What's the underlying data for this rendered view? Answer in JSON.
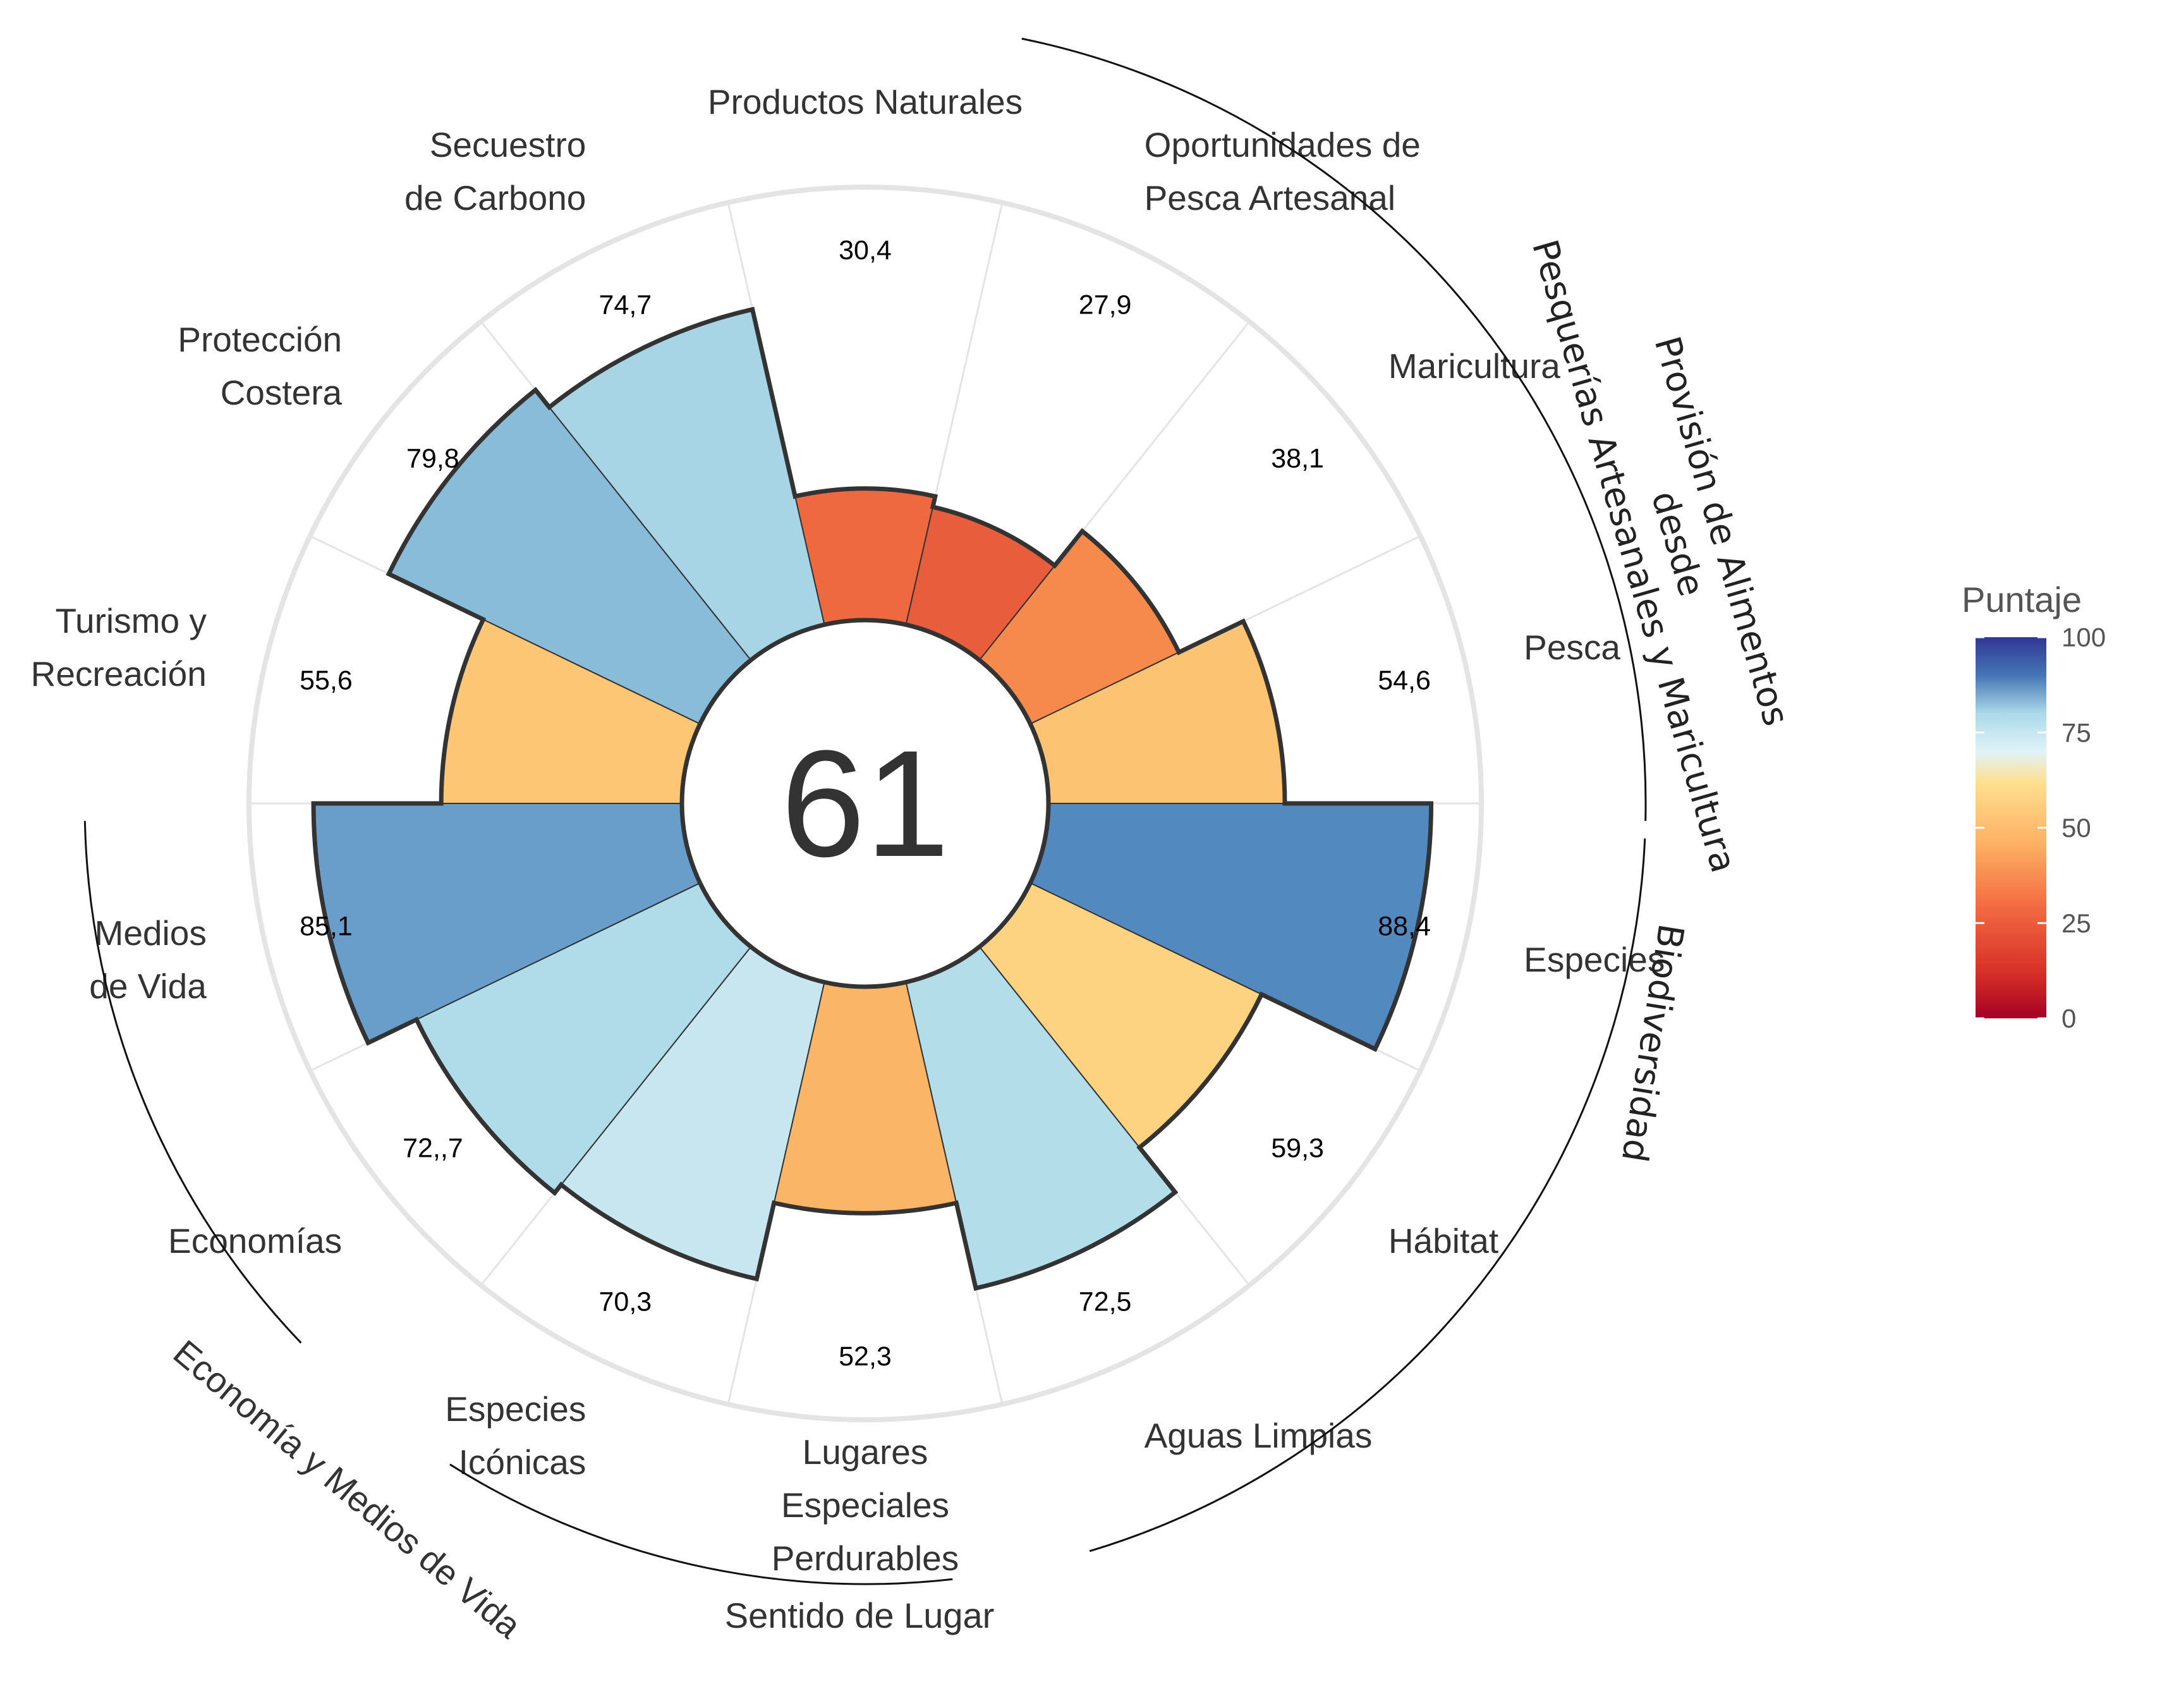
{
  "chart_data": {
    "type": "polar-bar",
    "center_score": "61",
    "legend": {
      "title": "Puntaje",
      "ticks": [
        "0",
        "25",
        "50",
        "75",
        "100"
      ]
    },
    "categories": [
      {
        "label": [
          "Productos Naturales"
        ],
        "value": 30.4,
        "value_label": "30,4",
        "color": "#ee6840"
      },
      {
        "label": [
          "Oportunidades de",
          "Pesca Artesanal"
        ],
        "value": 27.9,
        "value_label": "27,9",
        "color": "#e85d3b"
      },
      {
        "label": [
          "Maricultura"
        ],
        "value": 38.1,
        "value_label": "38,1",
        "color": "#f58a4c"
      },
      {
        "label": [
          "Pesca"
        ],
        "value": 54.6,
        "value_label": "54,6",
        "color": "#fcc472"
      },
      {
        "label": [
          "Especies"
        ],
        "value": 88.4,
        "value_label": "88,4",
        "color": "#5289be"
      },
      {
        "label": [
          "Hábitat"
        ],
        "value": 59.3,
        "value_label": "59,3",
        "color": "#fdd280"
      },
      {
        "label": [
          "Aguas Limpias"
        ],
        "value": 72.5,
        "value_label": "72,5",
        "color": "#b3dde9"
      },
      {
        "label": [
          "Lugares",
          "Especiales",
          "Perdurables"
        ],
        "value": 52.3,
        "value_label": "52,3",
        "color": "#fab566"
      },
      {
        "label": [
          "Especies",
          "Icónicas"
        ],
        "value": 70.3,
        "value_label": "70,3",
        "color": "#c8e6ef"
      },
      {
        "label": [
          "Economías"
        ],
        "value": 72.7,
        "value_label": "72,,7",
        "color": "#b0dbe9"
      },
      {
        "label": [
          "Medios",
          "de Vida"
        ],
        "value": 85.1,
        "value_label": "85,1",
        "color": "#699ecb"
      },
      {
        "label": [
          "Turismo y",
          "Recreación"
        ],
        "value": 55.6,
        "value_label": "55,6",
        "color": "#fcc675"
      },
      {
        "label": [
          "Protección",
          "Costera"
        ],
        "value": 79.8,
        "value_label": "79,8",
        "color": "#88bcd8"
      },
      {
        "label": [
          "Secuestro",
          "de Carbono"
        ],
        "value": 74.7,
        "value_label": "74,7",
        "color": "#a8d5e6"
      }
    ],
    "groups": [
      {
        "label": [
          "Provisión de Alimentos",
          "desde",
          "Pesquerías Artesanales y Maricultura"
        ]
      },
      {
        "label": [
          "Biodiversidad"
        ]
      },
      {
        "label": [
          "Sentido de Lugar"
        ]
      },
      {
        "label": [
          "Economía y Medios de Vida"
        ]
      }
    ],
    "ylim": [
      0,
      100
    ]
  }
}
